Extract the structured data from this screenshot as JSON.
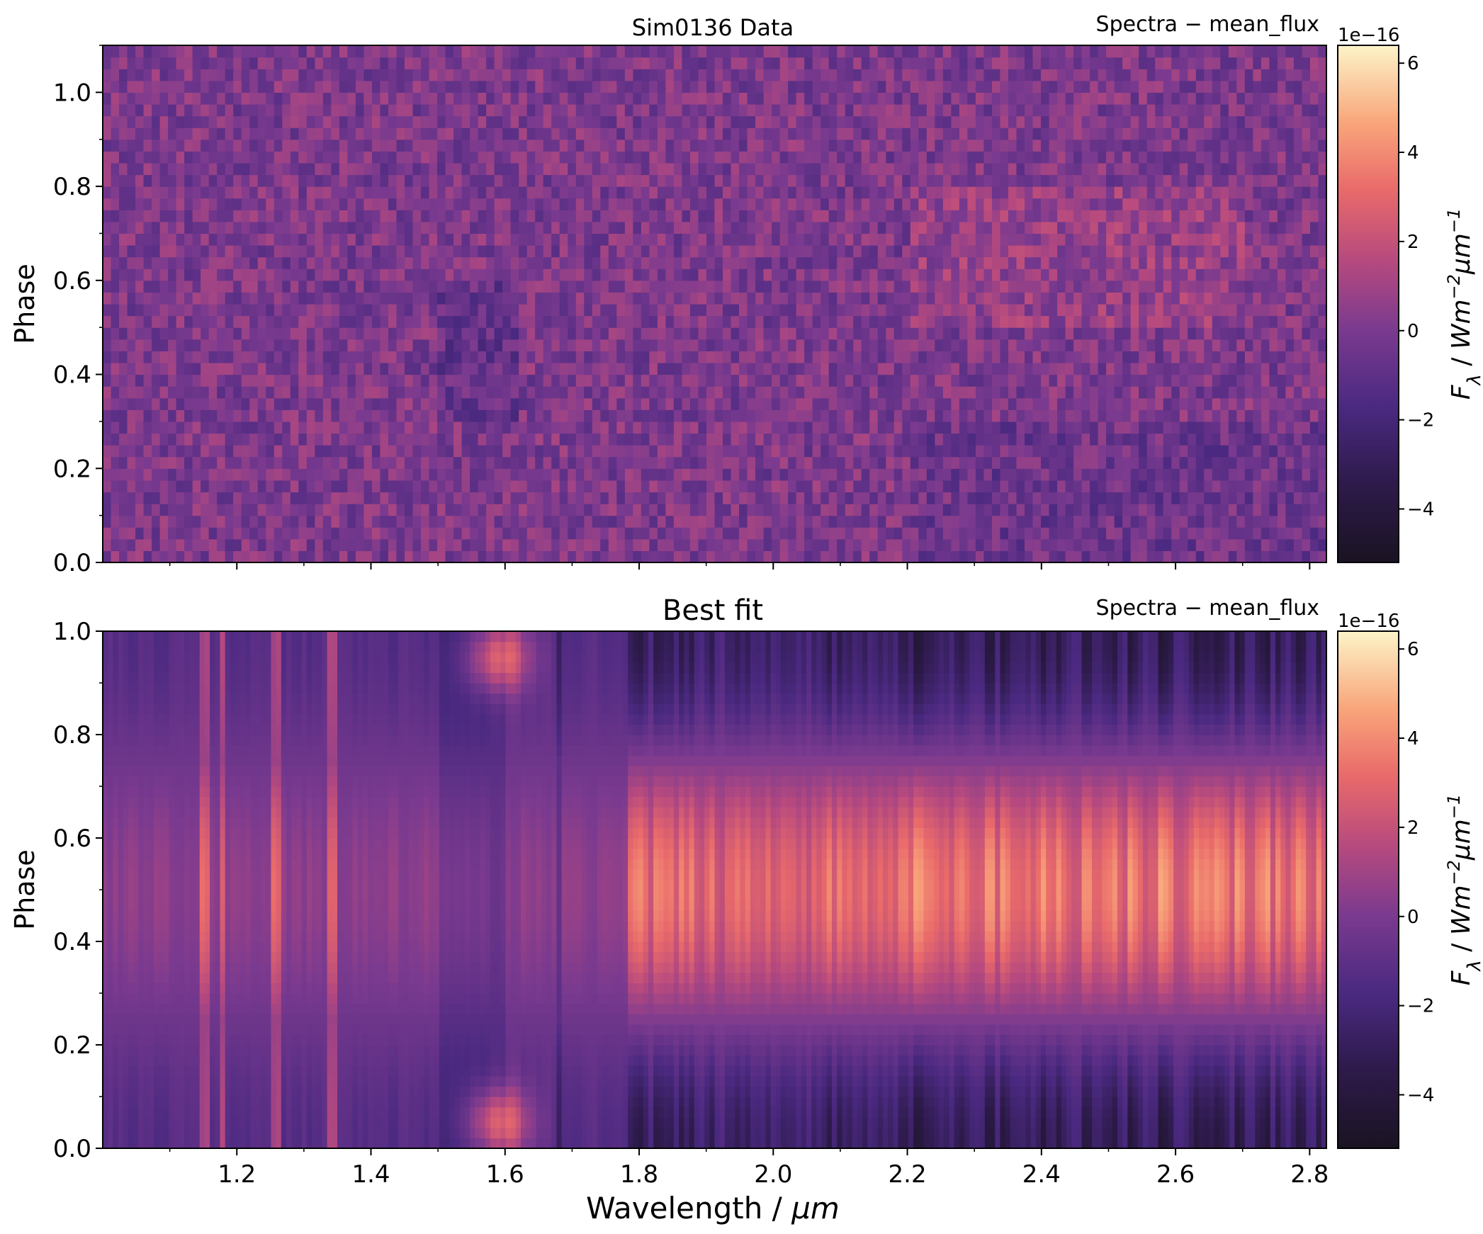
{
  "chart_data": [
    {
      "type": "heatmap",
      "title": "Sim0136 Data",
      "corner_label": "Spectra − mean_flux",
      "ylabel": "Phase",
      "xlim": [
        1.0,
        2.825
      ],
      "ylim": [
        0.0,
        1.1
      ],
      "yticks": [
        0.0,
        0.2,
        0.4,
        0.6,
        0.8,
        1.0
      ],
      "xticks": [
        1.2,
        1.4,
        1.6,
        1.8,
        2.0,
        2.2,
        2.4,
        2.6,
        2.8
      ],
      "show_xticklabels": false,
      "colormap": "magma",
      "colorbar": {
        "label": "F_λ / Wm^-2 μm^-1",
        "exponent_label": "1e−16",
        "range": [
          -5.2,
          6.4
        ],
        "ticks": [
          -4,
          -2,
          0,
          2,
          4,
          6
        ],
        "tick_labels": [
          "−4",
          "−2",
          "0",
          "2",
          "4",
          "6"
        ]
      },
      "description": "noisy residual map with values mostly between -1.5e-16 and 1.5e-16"
    },
    {
      "type": "heatmap",
      "title": "Best fit",
      "corner_label": "Spectra − mean_flux",
      "ylabel": "Phase",
      "xlabel": "Wavelength / μm",
      "xlim": [
        1.0,
        2.825
      ],
      "ylim": [
        0.0,
        1.0
      ],
      "yticks": [
        0.0,
        0.2,
        0.4,
        0.6,
        0.8,
        1.0
      ],
      "xticks": [
        1.2,
        1.4,
        1.6,
        1.8,
        2.0,
        2.2,
        2.4,
        2.6,
        2.8
      ],
      "show_xticklabels": true,
      "colormap": "magma",
      "colorbar": {
        "label": "F_λ / Wm^-2 μm^-1",
        "exponent_label": "1e−16",
        "range": [
          -5.2,
          6.4
        ],
        "ticks": [
          -4,
          -2,
          0,
          2,
          4,
          6
        ],
        "tick_labels": [
          "−4",
          "−2",
          "0",
          "2",
          "4",
          "6"
        ]
      },
      "features": {
        "bright_phase_center": 0.5,
        "dark_phase_centers": [
          0.0,
          1.0
        ],
        "transition_wavelength": 1.78,
        "bright_spots": [
          {
            "x": 1.59,
            "y": 0.05
          },
          {
            "x": 1.59,
            "y": 0.95
          }
        ],
        "vertical_lines": [
          1.15,
          1.18,
          1.26,
          1.34,
          1.68
        ]
      }
    }
  ]
}
